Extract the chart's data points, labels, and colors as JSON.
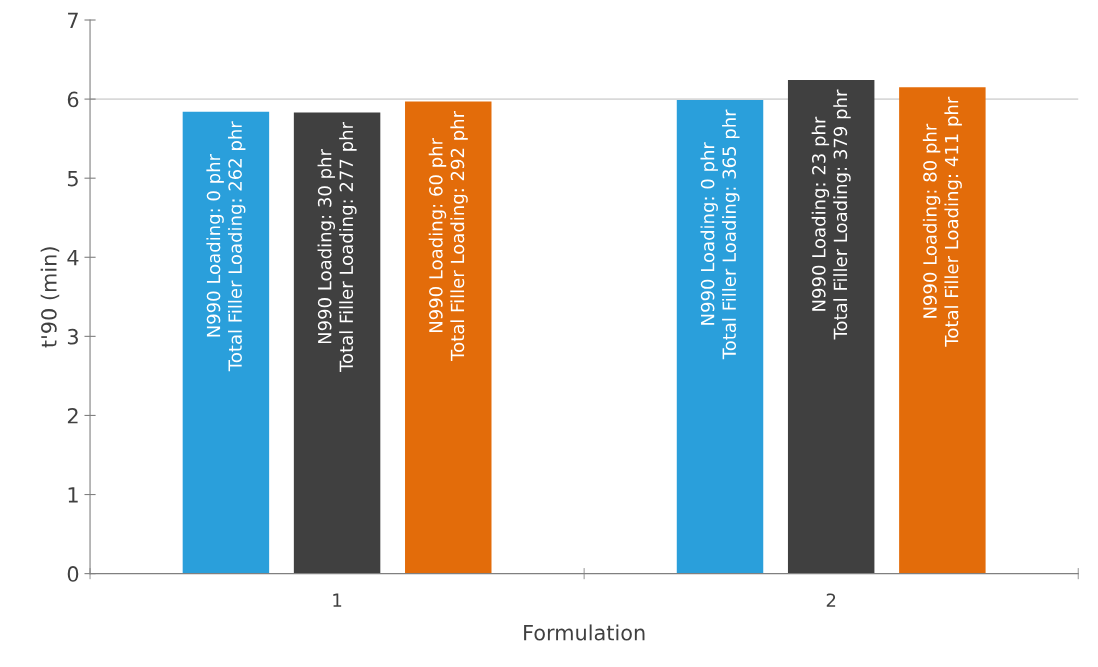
{
  "chart_data": {
    "type": "bar",
    "xlabel": "Formulation",
    "ylabel": "t'90 (min)",
    "categories": [
      "1",
      "2"
    ],
    "series": [
      {
        "color": "#2a9fdb",
        "values": [
          5.84,
          5.99
        ]
      },
      {
        "color": "#404040",
        "values": [
          5.83,
          6.24
        ]
      },
      {
        "color": "#e36c0a",
        "values": [
          5.97,
          6.15
        ]
      }
    ],
    "ylim": [
      0,
      7
    ],
    "yticks": [
      0,
      1,
      2,
      3,
      4,
      5,
      6,
      7
    ],
    "grid": false,
    "legend": false,
    "ref_lines": [
      {
        "axis": "y",
        "value": 6,
        "color": "#d9d9d9"
      }
    ],
    "annotations": [
      "N990 Loading: 0 phr\nTotal Filler Loading: 262 phr",
      "N990 Loading: 30 phr\nTotal Filler Loading: 277 phr",
      "N990 Loading: 60 phr\nTotal Filler Loading: 292 phr",
      "N990 Loading: 0 phr\nTotal Filler Loading: 365 phr",
      "N990 Loading: 23 phr\nTotal Filler Loading: 379 phr",
      "N990 Loading: 80 phr\nTotal Filler Loading: 411 phr"
    ]
  }
}
